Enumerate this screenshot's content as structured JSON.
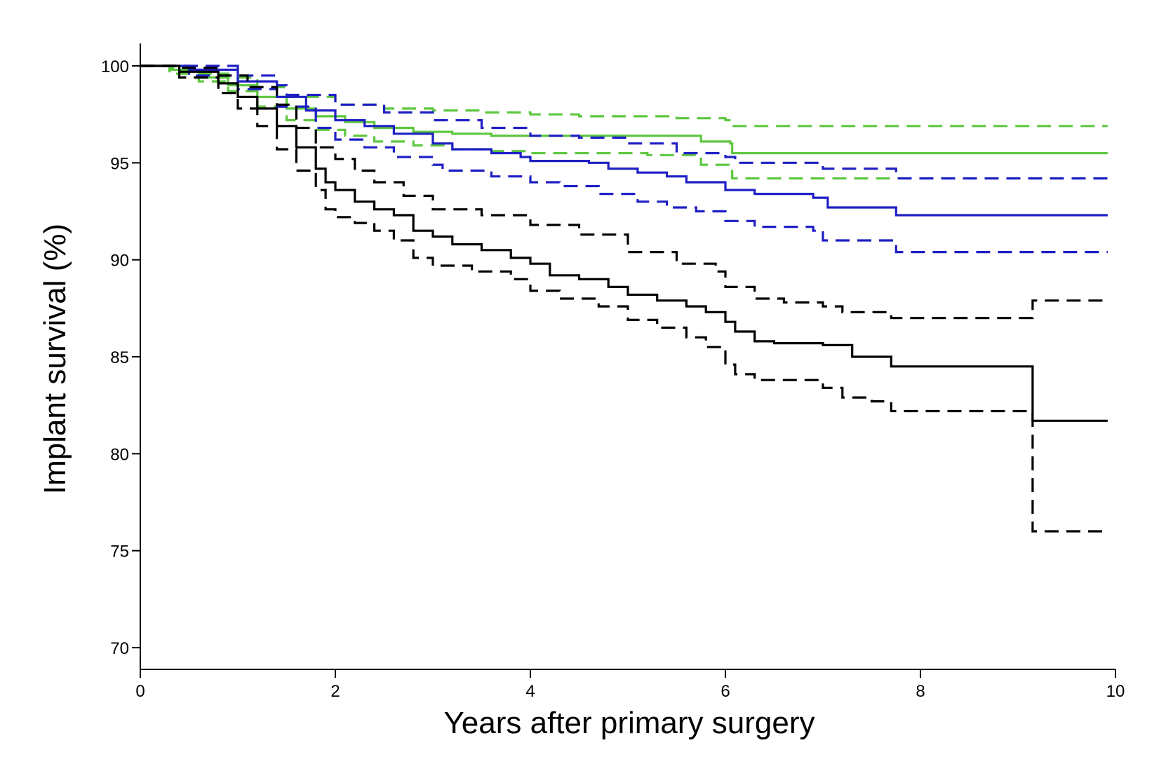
{
  "chart_data": {
    "type": "line",
    "title": "",
    "xlabel": "Years after primary surgery",
    "ylabel": "Implant survival (%)",
    "xlim": [
      0,
      10
    ],
    "ylim": [
      70,
      101
    ],
    "xticks": [
      0,
      2,
      4,
      6,
      8,
      10
    ],
    "xtick_labels": [
      "0",
      "2",
      "4",
      "6",
      "8",
      "10"
    ],
    "yticks": [
      70,
      75,
      80,
      85,
      90,
      95,
      100
    ],
    "ytick_labels": [
      "70",
      "75",
      "80",
      "85",
      "90",
      "95",
      "100"
    ],
    "grid": false,
    "legend": "none",
    "series": [
      {
        "name": "green-upper-ci",
        "color": "#5dc73f",
        "style": "dashed",
        "points": [
          [
            0,
            100
          ],
          [
            0.3,
            99.9
          ],
          [
            0.6,
            99.6
          ],
          [
            0.9,
            99.4
          ],
          [
            1.2,
            98.9
          ],
          [
            1.5,
            98.4
          ],
          [
            2.0,
            98.0
          ],
          [
            2.5,
            97.8
          ],
          [
            3.0,
            97.7
          ],
          [
            3.5,
            97.6
          ],
          [
            4.0,
            97.5
          ],
          [
            4.5,
            97.4
          ],
          [
            5.0,
            97.4
          ],
          [
            5.5,
            97.3
          ],
          [
            6.0,
            97.2
          ],
          [
            6.07,
            96.9
          ],
          [
            9.92,
            96.9
          ]
        ]
      },
      {
        "name": "green-survival",
        "color": "#5dc73f",
        "style": "solid",
        "points": [
          [
            0,
            100
          ],
          [
            0.3,
            99.8
          ],
          [
            0.6,
            99.4
          ],
          [
            0.9,
            99.0
          ],
          [
            1.2,
            98.4
          ],
          [
            1.5,
            97.8
          ],
          [
            1.8,
            97.4
          ],
          [
            2.1,
            97.1
          ],
          [
            2.4,
            96.8
          ],
          [
            2.8,
            96.6
          ],
          [
            3.2,
            96.5
          ],
          [
            3.6,
            96.4
          ],
          [
            4.0,
            96.4
          ],
          [
            5.0,
            96.4
          ],
          [
            5.7,
            96.4
          ],
          [
            5.75,
            96.1
          ],
          [
            6.05,
            96.0
          ],
          [
            6.07,
            95.5
          ],
          [
            9.92,
            95.5
          ]
        ]
      },
      {
        "name": "green-lower-ci",
        "color": "#5dc73f",
        "style": "dashed",
        "points": [
          [
            0,
            100
          ],
          [
            0.3,
            99.6
          ],
          [
            0.6,
            99.2
          ],
          [
            0.9,
            98.7
          ],
          [
            1.2,
            97.9
          ],
          [
            1.5,
            97.2
          ],
          [
            1.8,
            96.7
          ],
          [
            2.1,
            96.4
          ],
          [
            2.4,
            96.1
          ],
          [
            2.8,
            95.9
          ],
          [
            3.2,
            95.7
          ],
          [
            3.6,
            95.6
          ],
          [
            4.0,
            95.5
          ],
          [
            4.6,
            95.5
          ],
          [
            5.2,
            95.4
          ],
          [
            5.7,
            95.3
          ],
          [
            5.75,
            94.9
          ],
          [
            6.05,
            94.8
          ],
          [
            6.07,
            94.2
          ],
          [
            9.92,
            94.2
          ]
        ]
      },
      {
        "name": "blue-upper-ci",
        "color": "#1f1fc4",
        "style": "dashed",
        "points": [
          [
            0,
            100
          ],
          [
            0.5,
            100
          ],
          [
            1.0,
            99.5
          ],
          [
            1.4,
            99.0
          ],
          [
            1.5,
            98.5
          ],
          [
            2.0,
            98.0
          ],
          [
            2.5,
            97.6
          ],
          [
            3.0,
            97.2
          ],
          [
            3.5,
            96.8
          ],
          [
            4.0,
            96.4
          ],
          [
            4.5,
            96.3
          ],
          [
            5.0,
            96.0
          ],
          [
            5.5,
            95.5
          ],
          [
            6.0,
            95.3
          ],
          [
            6.1,
            95.0
          ],
          [
            7.0,
            94.7
          ],
          [
            7.75,
            94.2
          ],
          [
            9.92,
            94.2
          ]
        ]
      },
      {
        "name": "blue-survival",
        "color": "#1f1fc4",
        "style": "solid",
        "points": [
          [
            0,
            100
          ],
          [
            0.5,
            99.8
          ],
          [
            1.0,
            99.2
          ],
          [
            1.4,
            98.4
          ],
          [
            1.7,
            97.7
          ],
          [
            2.0,
            97.2
          ],
          [
            2.3,
            96.9
          ],
          [
            2.6,
            96.5
          ],
          [
            3.0,
            96.0
          ],
          [
            3.2,
            95.7
          ],
          [
            3.6,
            95.5
          ],
          [
            3.9,
            95.3
          ],
          [
            4.0,
            95.1
          ],
          [
            4.6,
            95.0
          ],
          [
            4.8,
            94.7
          ],
          [
            5.1,
            94.5
          ],
          [
            5.4,
            94.3
          ],
          [
            5.6,
            94.0
          ],
          [
            6.0,
            93.6
          ],
          [
            6.3,
            93.4
          ],
          [
            6.9,
            93.2
          ],
          [
            7.05,
            92.7
          ],
          [
            7.75,
            92.3
          ],
          [
            9.92,
            92.3
          ]
        ]
      },
      {
        "name": "blue-lower-ci",
        "color": "#1f1fc4",
        "style": "dashed",
        "points": [
          [
            0,
            100
          ],
          [
            0.5,
            99.5
          ],
          [
            1.0,
            98.8
          ],
          [
            1.4,
            97.9
          ],
          [
            1.8,
            96.8
          ],
          [
            2.0,
            96.2
          ],
          [
            2.3,
            95.8
          ],
          [
            2.6,
            95.3
          ],
          [
            3.0,
            94.9
          ],
          [
            3.1,
            94.6
          ],
          [
            3.6,
            94.3
          ],
          [
            4.0,
            94.0
          ],
          [
            4.3,
            93.8
          ],
          [
            4.7,
            93.4
          ],
          [
            5.1,
            93.0
          ],
          [
            5.4,
            92.7
          ],
          [
            5.7,
            92.5
          ],
          [
            6.0,
            92.0
          ],
          [
            6.3,
            91.7
          ],
          [
            6.9,
            91.5
          ],
          [
            7.0,
            91.0
          ],
          [
            7.75,
            90.4
          ],
          [
            9.92,
            90.4
          ]
        ]
      },
      {
        "name": "black-upper-ci",
        "color": "#000000",
        "style": "dashed",
        "points": [
          [
            0,
            100
          ],
          [
            0.4,
            99.9
          ],
          [
            0.8,
            99.5
          ],
          [
            1.1,
            98.9
          ],
          [
            1.4,
            98.0
          ],
          [
            1.6,
            96.8
          ],
          [
            1.8,
            95.8
          ],
          [
            2.0,
            95.2
          ],
          [
            2.2,
            94.6
          ],
          [
            2.4,
            94.0
          ],
          [
            2.7,
            93.3
          ],
          [
            3.0,
            92.6
          ],
          [
            3.5,
            92.3
          ],
          [
            4.0,
            91.8
          ],
          [
            4.5,
            91.3
          ],
          [
            5.0,
            90.4
          ],
          [
            5.5,
            89.8
          ],
          [
            5.9,
            89.4
          ],
          [
            6.0,
            88.6
          ],
          [
            6.3,
            88.0
          ],
          [
            6.6,
            87.8
          ],
          [
            7.0,
            87.6
          ],
          [
            7.2,
            87.3
          ],
          [
            7.7,
            87.0
          ],
          [
            9.1,
            87.0
          ],
          [
            9.15,
            87.9
          ],
          [
            9.92,
            87.9
          ]
        ]
      },
      {
        "name": "black-survival",
        "color": "#000000",
        "style": "solid",
        "points": [
          [
            0,
            100
          ],
          [
            0.4,
            99.7
          ],
          [
            0.8,
            99.1
          ],
          [
            1.0,
            98.4
          ],
          [
            1.2,
            97.8
          ],
          [
            1.4,
            96.9
          ],
          [
            1.6,
            95.8
          ],
          [
            1.8,
            94.7
          ],
          [
            1.9,
            94.0
          ],
          [
            2.0,
            93.6
          ],
          [
            2.2,
            93.0
          ],
          [
            2.4,
            92.6
          ],
          [
            2.6,
            92.3
          ],
          [
            2.8,
            91.5
          ],
          [
            3.0,
            91.2
          ],
          [
            3.2,
            90.8
          ],
          [
            3.5,
            90.5
          ],
          [
            3.8,
            90.1
          ],
          [
            4.0,
            89.8
          ],
          [
            4.2,
            89.2
          ],
          [
            4.5,
            89.0
          ],
          [
            4.8,
            88.6
          ],
          [
            5.0,
            88.2
          ],
          [
            5.3,
            87.9
          ],
          [
            5.6,
            87.6
          ],
          [
            5.8,
            87.3
          ],
          [
            6.0,
            86.8
          ],
          [
            6.1,
            86.3
          ],
          [
            6.3,
            85.8
          ],
          [
            6.5,
            85.7
          ],
          [
            7.0,
            85.6
          ],
          [
            7.3,
            85.0
          ],
          [
            7.7,
            84.5
          ],
          [
            9.1,
            84.5
          ],
          [
            9.15,
            81.7
          ],
          [
            9.92,
            81.7
          ]
        ]
      },
      {
        "name": "black-lower-ci",
        "color": "#000000",
        "style": "dashed",
        "points": [
          [
            0,
            100
          ],
          [
            0.4,
            99.4
          ],
          [
            0.8,
            98.6
          ],
          [
            1.0,
            97.8
          ],
          [
            1.2,
            96.9
          ],
          [
            1.4,
            95.7
          ],
          [
            1.6,
            94.6
          ],
          [
            1.8,
            93.6
          ],
          [
            1.9,
            92.6
          ],
          [
            2.0,
            92.2
          ],
          [
            2.2,
            91.9
          ],
          [
            2.4,
            91.5
          ],
          [
            2.6,
            91.0
          ],
          [
            2.8,
            90.1
          ],
          [
            3.0,
            89.7
          ],
          [
            3.4,
            89.4
          ],
          [
            3.8,
            89.0
          ],
          [
            4.0,
            88.4
          ],
          [
            4.3,
            88.0
          ],
          [
            4.7,
            87.6
          ],
          [
            5.0,
            86.9
          ],
          [
            5.3,
            86.5
          ],
          [
            5.6,
            86.0
          ],
          [
            5.8,
            85.5
          ],
          [
            6.0,
            84.6
          ],
          [
            6.1,
            84.1
          ],
          [
            6.3,
            83.8
          ],
          [
            7.0,
            83.4
          ],
          [
            7.2,
            82.9
          ],
          [
            7.5,
            82.7
          ],
          [
            7.7,
            82.2
          ],
          [
            9.1,
            82.2
          ],
          [
            9.15,
            76.0
          ],
          [
            9.92,
            76.0
          ]
        ]
      }
    ]
  }
}
